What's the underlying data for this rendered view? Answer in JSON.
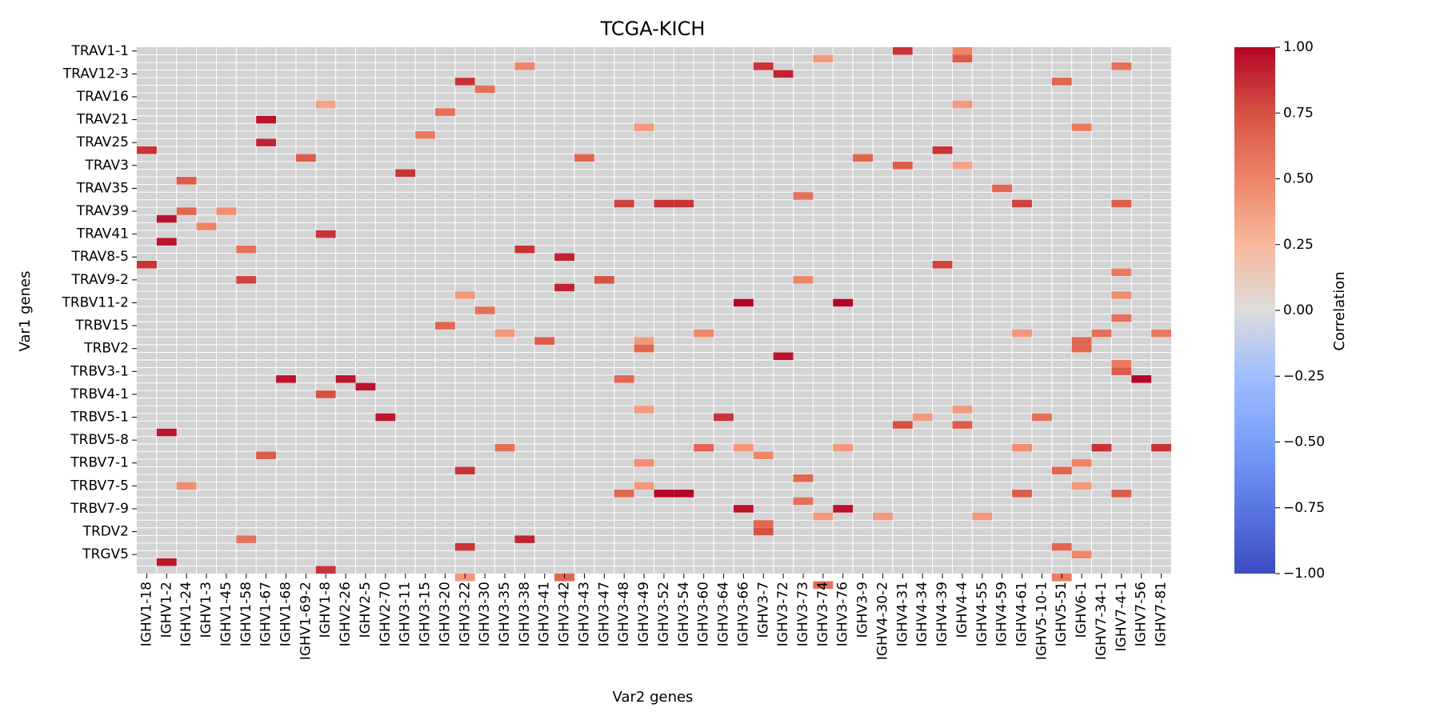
{
  "chart_data": {
    "type": "heatmap",
    "title": "TCGA-KICH",
    "xlabel": "Var2 genes",
    "ylabel": "Var1 genes",
    "x": [
      "IGHV1-18",
      "IGHV1-2",
      "IGHV1-24",
      "IGHV1-3",
      "IGHV1-45",
      "IGHV1-58",
      "IGHV1-67",
      "IGHV1-68",
      "IGHV1-69-2",
      "IGHV1-8",
      "IGHV2-26",
      "IGHV2-5",
      "IGHV2-70",
      "IGHV3-11",
      "IGHV3-15",
      "IGHV3-20",
      "IGHV3-22",
      "IGHV3-30",
      "IGHV3-35",
      "IGHV3-38",
      "IGHV3-41",
      "IGHV3-42",
      "IGHV3-43",
      "IGHV3-47",
      "IGHV3-48",
      "IGHV3-49",
      "IGHV3-52",
      "IGHV3-54",
      "IGHV3-60",
      "IGHV3-64",
      "IGHV3-66",
      "IGHV3-7",
      "IGHV3-72",
      "IGHV3-73",
      "IGHV3-74",
      "IGHV3-76",
      "IGHV3-9",
      "IGHV4-30-2",
      "IGHV4-31",
      "IGHV4-34",
      "IGHV4-39",
      "IGHV4-4",
      "IGHV4-55",
      "IGHV4-59",
      "IGHV4-61",
      "IGHV5-10-1",
      "IGHV5-51",
      "IGHV6-1",
      "IGHV7-34-1",
      "IGHV7-4-1",
      "IGHV7-56",
      "IGHV7-81"
    ],
    "y": [
      "TRAV1-1",
      "",
      "",
      "TRAV12-3",
      "",
      "",
      "TRAV16",
      "",
      "",
      "TRAV21",
      "",
      "",
      "TRAV25",
      "",
      "",
      "TRAV3",
      "",
      "",
      "TRAV35",
      "",
      "",
      "TRAV39",
      "",
      "",
      "TRAV41",
      "",
      "",
      "TRAV8-5",
      "",
      "",
      "TRAV9-2",
      "",
      "",
      "TRBV11-2",
      "",
      "",
      "TRBV15",
      "",
      "",
      "TRBV2",
      "",
      "",
      "TRBV3-1",
      "",
      "",
      "TRBV4-1",
      "",
      "",
      "TRBV5-1",
      "",
      "",
      "TRBV5-8",
      "",
      "",
      "TRBV7-1",
      "",
      "",
      "TRBV7-5",
      "",
      "",
      "TRBV7-9",
      "",
      "",
      "TRDV2",
      "",
      "",
      "TRGV5",
      "",
      ""
    ],
    "cells": [
      [
        0,
        38,
        0.85
      ],
      [
        0,
        41,
        0.5
      ],
      [
        1,
        34,
        0.4
      ],
      [
        1,
        41,
        0.7
      ],
      [
        2,
        31,
        0.85
      ],
      [
        2,
        19,
        0.5
      ],
      [
        2,
        49,
        0.6
      ],
      [
        3,
        32,
        0.9
      ],
      [
        4,
        16,
        0.85
      ],
      [
        4,
        46,
        0.65
      ],
      [
        5,
        17,
        0.6
      ],
      [
        7,
        9,
        0.35
      ],
      [
        7,
        41,
        0.4
      ],
      [
        8,
        15,
        0.6
      ],
      [
        9,
        6,
        0.95
      ],
      [
        10,
        25,
        0.4
      ],
      [
        10,
        47,
        0.55
      ],
      [
        11,
        14,
        0.55
      ],
      [
        12,
        6,
        0.9
      ],
      [
        13,
        0,
        0.85
      ],
      [
        13,
        40,
        0.85
      ],
      [
        14,
        8,
        0.7
      ],
      [
        14,
        22,
        0.65
      ],
      [
        14,
        36,
        0.65
      ],
      [
        15,
        38,
        0.7
      ],
      [
        15,
        41,
        0.35
      ],
      [
        16,
        13,
        0.85
      ],
      [
        17,
        2,
        0.7
      ],
      [
        18,
        43,
        0.65
      ],
      [
        19,
        33,
        0.6
      ],
      [
        20,
        24,
        0.8
      ],
      [
        20,
        26,
        0.85
      ],
      [
        20,
        27,
        0.85
      ],
      [
        20,
        44,
        0.8
      ],
      [
        20,
        49,
        0.7
      ],
      [
        21,
        2,
        0.65
      ],
      [
        21,
        4,
        0.45
      ],
      [
        22,
        1,
        0.95
      ],
      [
        23,
        3,
        0.5
      ],
      [
        24,
        9,
        0.85
      ],
      [
        25,
        1,
        0.95
      ],
      [
        26,
        5,
        0.6
      ],
      [
        26,
        19,
        0.85
      ],
      [
        27,
        21,
        0.9
      ],
      [
        28,
        0,
        0.85
      ],
      [
        28,
        40,
        0.8
      ],
      [
        29,
        49,
        0.55
      ],
      [
        30,
        5,
        0.8
      ],
      [
        30,
        23,
        0.75
      ],
      [
        30,
        33,
        0.5
      ],
      [
        31,
        21,
        0.9
      ],
      [
        32,
        16,
        0.4
      ],
      [
        32,
        49,
        0.45
      ],
      [
        33,
        30,
        1.0
      ],
      [
        33,
        35,
        1.0
      ],
      [
        34,
        17,
        0.6
      ],
      [
        35,
        49,
        0.6
      ],
      [
        36,
        15,
        0.65
      ],
      [
        37,
        18,
        0.4
      ],
      [
        37,
        28,
        0.5
      ],
      [
        37,
        44,
        0.4
      ],
      [
        37,
        48,
        0.6
      ],
      [
        37,
        51,
        0.55
      ],
      [
        38,
        20,
        0.7
      ],
      [
        38,
        25,
        0.4
      ],
      [
        38,
        47,
        0.65
      ],
      [
        39,
        25,
        0.65
      ],
      [
        39,
        47,
        0.65
      ],
      [
        40,
        32,
        0.95
      ],
      [
        41,
        49,
        0.55
      ],
      [
        42,
        49,
        0.7
      ],
      [
        43,
        7,
        0.95
      ],
      [
        43,
        10,
        0.95
      ],
      [
        43,
        24,
        0.65
      ],
      [
        43,
        50,
        1.0
      ],
      [
        44,
        11,
        0.95
      ],
      [
        45,
        9,
        0.75
      ],
      [
        47,
        25,
        0.4
      ],
      [
        47,
        41,
        0.4
      ],
      [
        48,
        12,
        0.95
      ],
      [
        48,
        29,
        0.85
      ],
      [
        48,
        39,
        0.4
      ],
      [
        48,
        45,
        0.6
      ],
      [
        49,
        38,
        0.75
      ],
      [
        49,
        41,
        0.7
      ],
      [
        50,
        1,
        0.95
      ],
      [
        52,
        18,
        0.6
      ],
      [
        52,
        28,
        0.65
      ],
      [
        52,
        30,
        0.4
      ],
      [
        52,
        35,
        0.4
      ],
      [
        52,
        44,
        0.45
      ],
      [
        52,
        48,
        0.85
      ],
      [
        52,
        51,
        0.85
      ],
      [
        53,
        6,
        0.7
      ],
      [
        53,
        31,
        0.5
      ],
      [
        54,
        25,
        0.45
      ],
      [
        54,
        47,
        0.5
      ],
      [
        55,
        16,
        0.85
      ],
      [
        55,
        46,
        0.65
      ],
      [
        56,
        33,
        0.65
      ],
      [
        57,
        2,
        0.45
      ],
      [
        57,
        25,
        0.4
      ],
      [
        57,
        47,
        0.4
      ],
      [
        58,
        24,
        0.65
      ],
      [
        58,
        26,
        1.0
      ],
      [
        58,
        27,
        1.0
      ],
      [
        58,
        44,
        0.7
      ],
      [
        58,
        49,
        0.7
      ],
      [
        59,
        33,
        0.6
      ],
      [
        60,
        30,
        0.95
      ],
      [
        60,
        35,
        0.95
      ],
      [
        61,
        34,
        0.4
      ],
      [
        61,
        37,
        0.4
      ],
      [
        61,
        42,
        0.4
      ],
      [
        62,
        31,
        0.65
      ],
      [
        63,
        31,
        0.75
      ],
      [
        64,
        5,
        0.6
      ],
      [
        64,
        19,
        0.9
      ],
      [
        65,
        16,
        0.85
      ],
      [
        65,
        46,
        0.65
      ],
      [
        66,
        47,
        0.5
      ],
      [
        67,
        1,
        0.95
      ],
      [
        68,
        9,
        0.85
      ],
      [
        69,
        16,
        0.4
      ],
      [
        69,
        21,
        0.65
      ],
      [
        69,
        46,
        0.55
      ],
      [
        70,
        34,
        0.6
      ]
    ],
    "background": "#d3d3d3",
    "colormap": "coolwarm",
    "colorbar": {
      "label": "Correlation",
      "vmin": -1.0,
      "vmax": 1.0,
      "ticks": [
        "1.00",
        "0.75",
        "0.50",
        "0.25",
        "0.00",
        "−0.25",
        "−0.50",
        "−0.75",
        "−1.00"
      ]
    }
  }
}
